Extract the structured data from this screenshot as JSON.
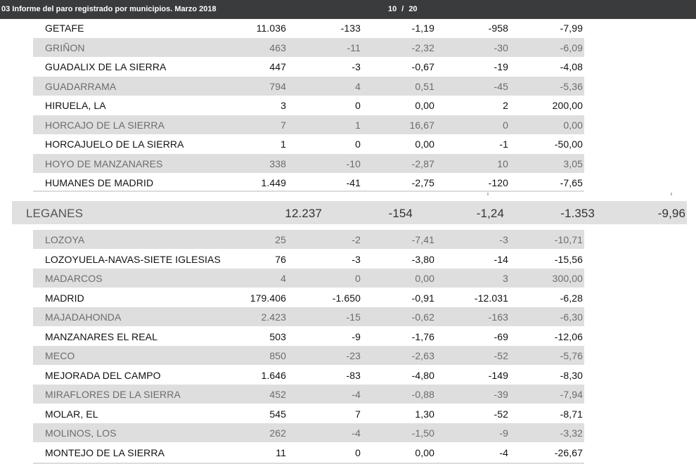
{
  "toolbar": {
    "title": "03 Informe del paro registrado por municipios. Marzo 2018",
    "current_page": "10",
    "separator": "/",
    "total_pages": "20"
  },
  "rows_top": [
    {
      "name": "GETAFE",
      "v1": "11.036",
      "v2": "-133",
      "v3": "-1,19",
      "v4": "-958",
      "v5": "-7,99"
    },
    {
      "name": "GRIÑON",
      "v1": "463",
      "v2": "-11",
      "v3": "-2,32",
      "v4": "-30",
      "v5": "-6,09"
    },
    {
      "name": "GUADALIX DE LA SIERRA",
      "v1": "447",
      "v2": "-3",
      "v3": "-0,67",
      "v4": "-19",
      "v5": "-4,08"
    },
    {
      "name": "GUADARRAMA",
      "v1": "794",
      "v2": "4",
      "v3": "0,51",
      "v4": "-45",
      "v5": "-5,36"
    },
    {
      "name": "HIRUELA, LA",
      "v1": "3",
      "v2": "0",
      "v3": "0,00",
      "v4": "2",
      "v5": "200,00"
    },
    {
      "name": "HORCAJO DE LA SIERRA",
      "v1": "7",
      "v2": "1",
      "v3": "16,67",
      "v4": "0",
      "v5": "0,00"
    },
    {
      "name": "HORCAJUELO DE LA SIERRA",
      "v1": "1",
      "v2": "0",
      "v3": "0,00",
      "v4": "-1",
      "v5": "-50,00"
    },
    {
      "name": "HOYO DE MANZANARES",
      "v1": "338",
      "v2": "-10",
      "v3": "-2,87",
      "v4": "10",
      "v5": "3,05"
    },
    {
      "name": "HUMANES DE MADRID",
      "v1": "1.449",
      "v2": "-41",
      "v3": "-2,75",
      "v4": "-120",
      "v5": "-7,65"
    }
  ],
  "highlight_row": {
    "name": "LEGANES",
    "v1": "12.237",
    "v2": "-154",
    "v3": "-1,24",
    "v4": "-1.353",
    "v5": "-9,96"
  },
  "rows_bottom": [
    {
      "name": "LOZOYA",
      "v1": "25",
      "v2": "-2",
      "v3": "-7,41",
      "v4": "-3",
      "v5": "-10,71"
    },
    {
      "name": "LOZOYUELA-NAVAS-SIETE IGLESIAS",
      "v1": "76",
      "v2": "-3",
      "v3": "-3,80",
      "v4": "-14",
      "v5": "-15,56"
    },
    {
      "name": "MADARCOS",
      "v1": "4",
      "v2": "0",
      "v3": "0,00",
      "v4": "3",
      "v5": "300,00"
    },
    {
      "name": "MADRID",
      "v1": "179.406",
      "v2": "-1.650",
      "v3": "-0,91",
      "v4": "-12.031",
      "v5": "-6,28"
    },
    {
      "name": "MAJADAHONDA",
      "v1": "2.423",
      "v2": "-15",
      "v3": "-0,62",
      "v4": "-163",
      "v5": "-6,30"
    },
    {
      "name": "MANZANARES EL REAL",
      "v1": "503",
      "v2": "-9",
      "v3": "-1,76",
      "v4": "-69",
      "v5": "-12,06"
    },
    {
      "name": "MECO",
      "v1": "850",
      "v2": "-23",
      "v3": "-2,63",
      "v4": "-52",
      "v5": "-5,76"
    },
    {
      "name": "MEJORADA DEL CAMPO",
      "v1": "1.646",
      "v2": "-83",
      "v3": "-4,80",
      "v4": "-149",
      "v5": "-8,30"
    },
    {
      "name": "MIRAFLORES DE LA SIERRA",
      "v1": "452",
      "v2": "-4",
      "v3": "-0,88",
      "v4": "-39",
      "v5": "-7,94"
    },
    {
      "name": "MOLAR, EL",
      "v1": "545",
      "v2": "7",
      "v3": "1,30",
      "v4": "-52",
      "v5": "-8,71"
    },
    {
      "name": "MOLINOS, LOS",
      "v1": "262",
      "v2": "-4",
      "v3": "-1,50",
      "v4": "-9",
      "v5": "-3,32"
    },
    {
      "name": "MONTEJO DE LA SIERRA",
      "v1": "11",
      "v2": "0",
      "v3": "0,00",
      "v4": "-4",
      "v5": "-26,67"
    }
  ]
}
